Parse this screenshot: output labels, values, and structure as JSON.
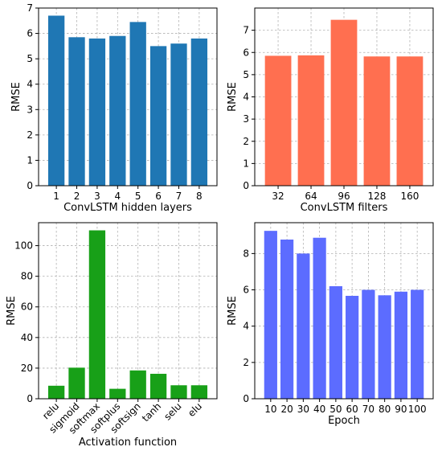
{
  "chart_data": [
    {
      "type": "bar",
      "categories": [
        "1",
        "2",
        "3",
        "4",
        "5",
        "6",
        "7",
        "8"
      ],
      "values": [
        6.7,
        5.85,
        5.8,
        5.9,
        6.45,
        5.5,
        5.6,
        5.8
      ],
      "xlabel": "ConvLSTM hidden layers",
      "ylabel": "RMSE",
      "ylim": [
        0,
        7
      ],
      "yticks": [
        0,
        1,
        2,
        3,
        4,
        5,
        6,
        7
      ],
      "color": "#1f77b4",
      "grid": true
    },
    {
      "type": "bar",
      "categories": [
        "32",
        "64",
        "96",
        "128",
        "160"
      ],
      "values": [
        5.85,
        5.87,
        7.47,
        5.82,
        5.82
      ],
      "xlabel": "ConvLSTM filters",
      "ylabel": "RMSE",
      "ylim": [
        0,
        8
      ],
      "yticks": [
        0,
        1,
        2,
        3,
        4,
        5,
        6,
        7
      ],
      "color": "#ff6f50",
      "grid": true
    },
    {
      "type": "bar",
      "categories": [
        "relu",
        "sigmoid",
        "softmax",
        "softplus",
        "softsign",
        "tanh",
        "selu",
        "elu"
      ],
      "values": [
        8.5,
        20.3,
        110.0,
        6.5,
        18.5,
        16.3,
        8.8,
        8.8
      ],
      "xlabel": "Activation function",
      "ylabel": "RMSE",
      "ylim": [
        0,
        115
      ],
      "yticks": [
        0,
        20,
        40,
        60,
        80,
        100
      ],
      "color": "#18a018",
      "rotate_xticks": true,
      "grid": true
    },
    {
      "type": "bar",
      "categories": [
        "10",
        "20",
        "30",
        "40",
        "50",
        "60",
        "70",
        "80",
        "90",
        "100"
      ],
      "values": [
        9.25,
        8.77,
        8.0,
        8.87,
        6.2,
        5.67,
        6.0,
        5.7,
        5.9,
        6.0
      ],
      "xlabel": "Epoch",
      "ylabel": "RMSE",
      "ylim": [
        0,
        9.7
      ],
      "yticks": [
        0,
        2,
        4,
        6,
        8
      ],
      "color": "#5c6cff",
      "grid": true
    }
  ]
}
